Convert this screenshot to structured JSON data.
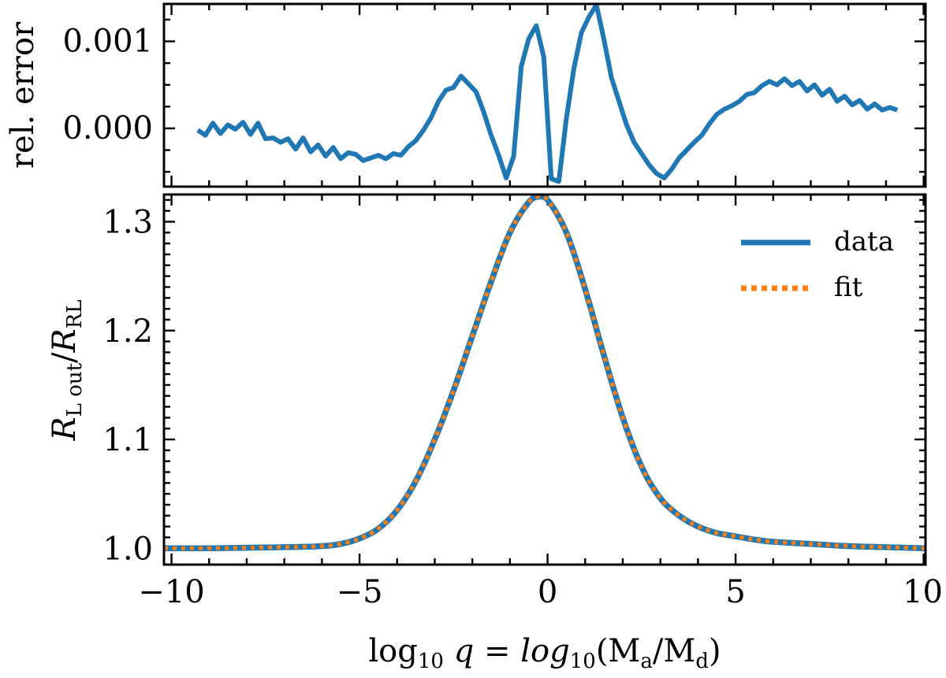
{
  "chart_data": [
    {
      "panel": "top",
      "type": "line",
      "ylabel": "rel. error",
      "xlim": [
        -10.2,
        10.05
      ],
      "ylim": [
        -0.00067,
        0.00143
      ],
      "yticks": [
        0.0,
        0.001
      ],
      "ytick_labels": [
        "0.000",
        "0.001"
      ],
      "xticks": [
        -10,
        -5,
        0,
        5,
        10
      ],
      "series": [
        {
          "name": "rel. error",
          "color": "#1f77b4",
          "x": [
            -9.3,
            -9.1,
            -8.9,
            -8.7,
            -8.5,
            -8.3,
            -8.1,
            -7.9,
            -7.7,
            -7.5,
            -7.3,
            -7.1,
            -6.9,
            -6.7,
            -6.5,
            -6.3,
            -6.1,
            -5.9,
            -5.7,
            -5.5,
            -5.3,
            -5.1,
            -4.9,
            -4.7,
            -4.5,
            -4.3,
            -4.1,
            -3.9,
            -3.7,
            -3.5,
            -3.3,
            -3.1,
            -2.9,
            -2.7,
            -2.5,
            -2.3,
            -2.1,
            -1.9,
            -1.7,
            -1.5,
            -1.3,
            -1.1,
            -0.9,
            -0.7,
            -0.5,
            -0.3,
            -0.1,
            0.1,
            0.3,
            0.5,
            0.7,
            0.9,
            1.1,
            1.3,
            1.5,
            1.7,
            1.9,
            2.1,
            2.3,
            2.5,
            2.7,
            2.9,
            3.1,
            3.3,
            3.5,
            3.7,
            3.9,
            4.1,
            4.3,
            4.5,
            4.7,
            4.9,
            5.1,
            5.3,
            5.5,
            5.7,
            5.9,
            6.1,
            6.3,
            6.5,
            6.7,
            6.9,
            7.1,
            7.3,
            7.5,
            7.7,
            7.9,
            8.1,
            8.3,
            8.5,
            8.7,
            8.9,
            9.1,
            9.3
          ],
          "values": [
            -2e-05,
            -8e-05,
            6e-05,
            -6e-05,
            4e-05,
            -1e-05,
            7e-05,
            -7e-05,
            6e-05,
            -0.00012,
            -0.00011,
            -0.00016,
            -0.00012,
            -0.00024,
            -0.00011,
            -0.00027,
            -0.00019,
            -0.00032,
            -0.00022,
            -0.00035,
            -0.00028,
            -0.0003,
            -0.00037,
            -0.00034,
            -0.00031,
            -0.00035,
            -0.00029,
            -0.00031,
            -0.00021,
            -0.00014,
            -2e-05,
            0.00012,
            0.00031,
            0.00044,
            0.00047,
            0.0006,
            0.00051,
            0.00042,
            0.00019,
            -8e-05,
            -0.00031,
            -0.00057,
            -0.00032,
            0.00071,
            0.00103,
            0.00118,
            0.00082,
            -0.00058,
            -0.00061,
            0.00011,
            0.00069,
            0.0011,
            0.00128,
            0.00142,
            0.00102,
            0.00058,
            0.00031,
            4e-05,
            -0.00016,
            -0.00029,
            -0.00042,
            -0.00052,
            -0.00057,
            -0.00047,
            -0.00034,
            -0.00025,
            -0.00016,
            -8e-05,
            5e-05,
            0.00016,
            0.00022,
            0.00026,
            0.00031,
            0.00039,
            0.00041,
            0.00049,
            0.00054,
            0.0005,
            0.00057,
            0.00049,
            0.00054,
            0.00043,
            0.0005,
            0.00038,
            0.00045,
            0.00031,
            0.00037,
            0.00027,
            0.00032,
            0.00022,
            0.00028,
            0.00021,
            0.00024,
            0.00021
          ]
        }
      ]
    },
    {
      "panel": "bottom",
      "type": "line",
      "ylabel": "R_L out / R_RL",
      "xlabel": "log10 q = log10(Ma / Md)",
      "xlim": [
        -10.2,
        10.05
      ],
      "ylim": [
        0.985,
        1.325
      ],
      "xticks": [
        -10,
        -5,
        0,
        5,
        10
      ],
      "xtick_labels": [
        "−10",
        "−5",
        "0",
        "5",
        "10"
      ],
      "yticks": [
        1.0,
        1.1,
        1.2,
        1.3
      ],
      "ytick_labels": [
        "1.0",
        "1.1",
        "1.2",
        "1.3"
      ],
      "peak": {
        "x": -0.25,
        "y": 1.323
      },
      "legend_position": "top-right",
      "series": [
        {
          "name": "data",
          "style": "solid",
          "color": "#1f77b4"
        },
        {
          "name": "fit",
          "style": "dotted",
          "color": "#ff7f0e"
        }
      ],
      "x": [
        -10.2,
        -9,
        -8,
        -7,
        -6,
        -5.5,
        -5,
        -4.5,
        -4,
        -3.5,
        -3,
        -2.5,
        -2,
        -1.5,
        -1,
        -0.5,
        -0.25,
        0,
        0.5,
        1,
        1.5,
        2,
        2.5,
        3,
        3.5,
        4,
        4.5,
        5,
        5.5,
        6,
        7,
        8,
        9,
        10.05
      ],
      "values": [
        1.0,
        1.0,
        1.0005,
        1.001,
        1.002,
        1.004,
        1.009,
        1.018,
        1.035,
        1.062,
        1.1,
        1.145,
        1.195,
        1.245,
        1.29,
        1.318,
        1.323,
        1.32,
        1.29,
        1.238,
        1.177,
        1.12,
        1.075,
        1.046,
        1.03,
        1.02,
        1.014,
        1.011,
        1.008,
        1.006,
        1.004,
        1.002,
        1.001,
        1.0
      ]
    }
  ],
  "legend": {
    "data_label": "data",
    "fit_label": "fit"
  },
  "labels": {
    "top_ylabel": "rel. error",
    "bottom_ylabel_main": "R",
    "bottom_ylabel_sub1": "L out",
    "bottom_ylabel_slash": "/",
    "bottom_ylabel_main2": "R",
    "bottom_ylabel_sub2": "RL",
    "xlabel_log": "log",
    "xlabel_10": "10",
    "xlabel_q": " q = log",
    "xlabel_10b": "10",
    "xlabel_open": "(M",
    "xlabel_a": "a",
    "xlabel_slash": "/M",
    "xlabel_d": "d",
    "xlabel_close": ")"
  },
  "colors": {
    "data": "#1f77b4",
    "fit": "#ff7f0e",
    "axes": "#000000"
  }
}
